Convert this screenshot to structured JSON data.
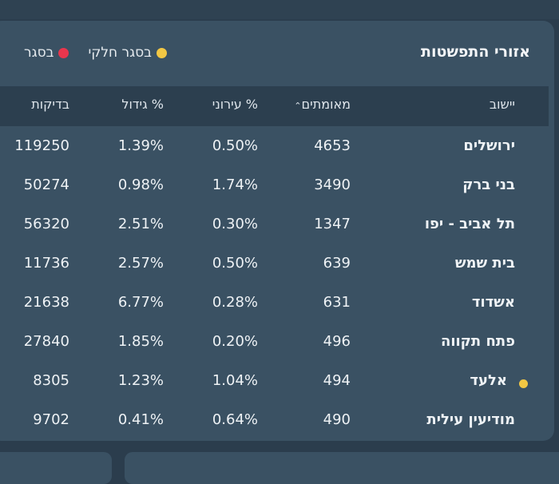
{
  "panel": {
    "title": "אזורי התפשטות",
    "legend": [
      {
        "label": "בסגר",
        "color": "#e8364d"
      },
      {
        "label": "בסגר חלקי",
        "color": "#f2c744"
      }
    ]
  },
  "table": {
    "headers": {
      "name": "יישוב",
      "confirmed": "מאומתים",
      "city_pct": "% עירוני",
      "growth_pct": "% גידול",
      "tests": "בדיקות"
    },
    "rows": [
      {
        "name": "ירושלים",
        "confirmed": "4653",
        "city_pct": "0.50%",
        "growth_pct": "1.39%",
        "tests": "119250",
        "marker": ""
      },
      {
        "name": "בני ברק",
        "confirmed": "3490",
        "city_pct": "1.74%",
        "growth_pct": "0.98%",
        "tests": "50274",
        "marker": ""
      },
      {
        "name": "תל אביב - יפו",
        "confirmed": "1347",
        "city_pct": "0.30%",
        "growth_pct": "2.51%",
        "tests": "56320",
        "marker": ""
      },
      {
        "name": "בית שמש",
        "confirmed": "639",
        "city_pct": "0.50%",
        "growth_pct": "2.57%",
        "tests": "11736",
        "marker": ""
      },
      {
        "name": "אשדוד",
        "confirmed": "631",
        "city_pct": "0.28%",
        "growth_pct": "6.77%",
        "tests": "21638",
        "marker": ""
      },
      {
        "name": "פתח תקווה",
        "confirmed": "496",
        "city_pct": "0.20%",
        "growth_pct": "1.85%",
        "tests": "27840",
        "marker": ""
      },
      {
        "name": "אלעד",
        "confirmed": "494",
        "city_pct": "1.04%",
        "growth_pct": "1.23%",
        "tests": "8305",
        "marker": "partial-lockdown"
      },
      {
        "name": "מודיעין עילית",
        "confirmed": "490",
        "city_pct": "0.64%",
        "growth_pct": "0.41%",
        "tests": "9702",
        "marker": ""
      }
    ]
  }
}
